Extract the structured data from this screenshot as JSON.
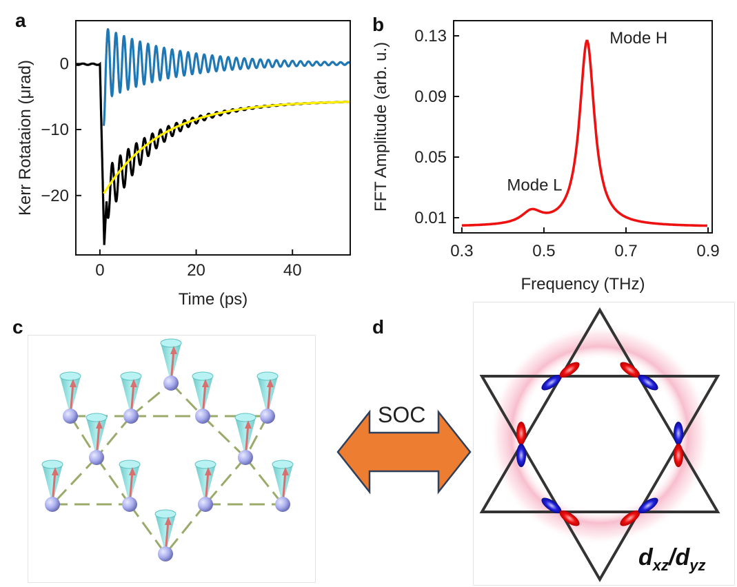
{
  "panels": {
    "a": "a",
    "b": "b",
    "c": "c",
    "d": "d"
  },
  "chart_data": [
    {
      "type": "line",
      "panel": "a",
      "xlabel": "Time (ps)",
      "ylabel": "Kerr Rotataion (μrad)",
      "xlim": [
        -5,
        52
      ],
      "ylim": [
        -29,
        6.5
      ],
      "xticks": [
        0,
        20,
        40
      ],
      "yticks": [
        0,
        -10,
        -20
      ],
      "ytick_labels": [
        "0",
        "−10",
        "−20"
      ],
      "series": [
        {
          "color": "#1f77b4",
          "kind": "oscillation-residual",
          "amplitude0": 5.5,
          "decay_ps": 15,
          "freq_thz": 0.6,
          "offset": 0,
          "t_start": 0.8,
          "t_end": 52
        },
        {
          "color": "#000000",
          "kind": "raw-kerr",
          "baseline": 0,
          "min_value": -27.5,
          "end_value": -5.8,
          "t_start": -5,
          "t_end": 52
        },
        {
          "color": "#ffee00",
          "kind": "exponential-fit",
          "y_start": -19.7,
          "y_end": -5.8,
          "t_start": 0.8,
          "t_end": 52
        }
      ]
    },
    {
      "type": "line",
      "panel": "b",
      "xlabel": "Frequency (THz)",
      "ylabel": "FFT Amplitude (arb. u.)",
      "xlim": [
        0.28,
        0.91
      ],
      "ylim": [
        0.0,
        0.14
      ],
      "xticks": [
        0.3,
        0.5,
        0.7,
        0.9
      ],
      "xtick_labels": [
        "0.3",
        "0.5",
        "0.7",
        "0.9"
      ],
      "yticks": [
        0.01,
        0.05,
        0.09,
        0.13
      ],
      "ytick_labels": [
        "0.01",
        "0.05",
        "0.09",
        "0.13"
      ],
      "series": [
        {
          "color": "#ee1111",
          "peaks": [
            {
              "center": 0.605,
              "amplitude": 0.1225,
              "width": 0.022
            },
            {
              "center": 0.47,
              "amplitude": 0.0085,
              "width": 0.03
            }
          ],
          "background": 0.004
        }
      ],
      "annotations": [
        {
          "text": "Mode H",
          "x": 0.66,
          "y": 0.125
        },
        {
          "text": "Mode L",
          "x": 0.41,
          "y": 0.028
        }
      ]
    }
  ],
  "figure_c": {
    "description_label": "kagome-spin-precession",
    "site_color": "#a8acec",
    "cone_color": "#7fd4d4",
    "bond_color": "#9aaa6a",
    "arrow_color": "#d87070"
  },
  "figure_d": {
    "label": "d_xz/d_yz",
    "label_main1": "d",
    "label_sub1": "xz",
    "label_sep": "/",
    "label_main2": "d",
    "label_sub2": "yz",
    "triangle_color": "#333333",
    "ring_glow_color": "#f2a6b8",
    "orbital_red": "#ee1111",
    "orbital_blue": "#1a1ad8"
  },
  "arrow": {
    "label": "SOC",
    "fill": "#ed7d31",
    "stroke": "#2f3f5a"
  }
}
